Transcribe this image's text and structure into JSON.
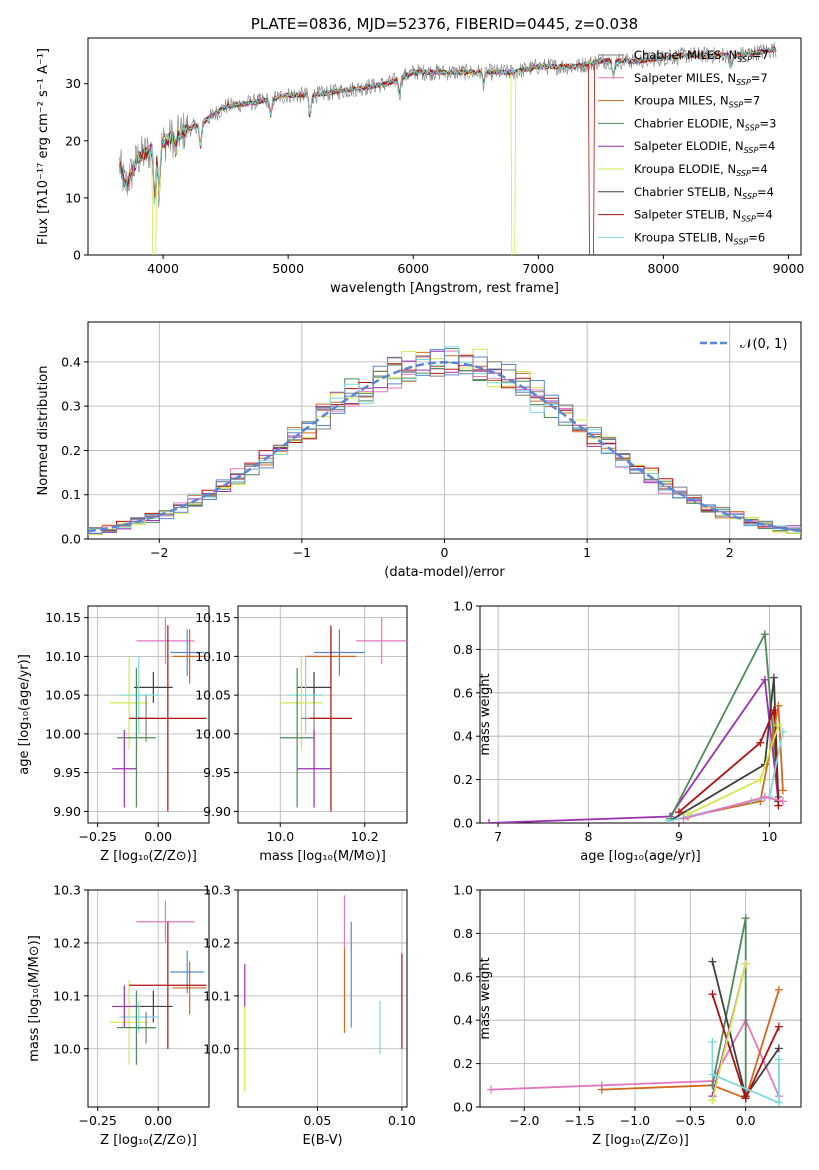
{
  "colors": {
    "chabrier_miles": "#7f7f7f",
    "salpeter_miles": "#e377c2",
    "kroupa_miles": "#d2691e",
    "chabrier_elodie": "#4e8a5a",
    "salpeter_elodie": "#9b30b0",
    "kroupa_elodie": "#d4e84a",
    "chabrier_stelib": "#404040",
    "salpeter_stelib": "#b01010",
    "kroupa_stelib": "#7fd8dc",
    "blue": "#5b86d4",
    "orange": "#ff7f0e"
  },
  "chart_data": [
    {
      "type": "line",
      "title": "PLATE=0836, MJD=52376, FIBERID=0445, z=0.038",
      "xlabel": "wavelength [Angstrom, rest frame]",
      "ylabel": "Flux [fλ10⁻¹⁷ erg cm⁻² s⁻¹ A⁻¹]",
      "xlim": [
        3400,
        9100
      ],
      "ylim": [
        0,
        38
      ],
      "xticks": [
        "4000",
        "5000",
        "6000",
        "7000",
        "8000",
        "9000"
      ],
      "yticks": [
        "0",
        "10",
        "20",
        "30"
      ],
      "legend_position": "top-right",
      "legend": [
        "Chabrier MILES, N_SSP=7",
        "Salpeter MILES, N_SSP=7",
        "Kroupa MILES, N_SSP=7",
        "Chabrier ELODIE, N_SSP=3",
        "Salpeter ELODIE, N_SSP=4",
        "Kroupa ELODIE, N_SSP=4",
        "Chabrier STELIB, N_SSP=4",
        "Salpeter STELIB, N_SSP=4",
        "Kroupa STELIB, N_SSP=6"
      ],
      "continuum": {
        "x": [
          3650,
          3700,
          3800,
          3950,
          4100,
          4300,
          4500,
          4800,
          5000,
          5200,
          5500,
          5800,
          6000,
          6300,
          6500,
          6800,
          7000,
          7300,
          7500,
          7800,
          8200,
          8600,
          8900
        ],
        "y": [
          16,
          12,
          17,
          19,
          21,
          23,
          26,
          27,
          28,
          28,
          29,
          30,
          32,
          32,
          32,
          32,
          33,
          33,
          34,
          34,
          35,
          35,
          36
        ]
      }
    },
    {
      "type": "line",
      "xlabel": "(data-model)/error",
      "ylabel": "Normed distribution",
      "xlim": [
        -2.5,
        2.5
      ],
      "ylim": [
        0,
        0.49
      ],
      "xticks": [
        "−2",
        "−1",
        "0",
        "1",
        "2"
      ],
      "yticks": [
        "0.0",
        "0.1",
        "0.2",
        "0.3",
        "0.4"
      ],
      "legend": [
        "𝒩(0, 1)"
      ],
      "legend_position": "top-right",
      "gaussian": {
        "mean": 0,
        "sigma": 1
      }
    },
    {
      "type": "scatter",
      "xlabel": "Z [log₁₀(Z/Z⊙)]",
      "ylabel": "age  [log₁₀(age/yr)]",
      "xlim": [
        -0.29,
        0.21
      ],
      "ylim": [
        9.885,
        10.165
      ],
      "xticks": [
        "−0.25",
        "0.00"
      ],
      "yticks": [
        "9.90",
        "9.95",
        "10.00",
        "10.05",
        "10.10",
        "10.15"
      ],
      "points": [
        {
          "x": 0.03,
          "y": 10.12,
          "xe": 0.12,
          "ye": 0.03,
          "c": "salpeter_miles"
        },
        {
          "x": 0.12,
          "y": 10.105,
          "xe": 0.07,
          "ye": 0.03,
          "c": "blue"
        },
        {
          "x": 0.13,
          "y": 10.1,
          "xe": 0.07,
          "ye": 0.035,
          "c": "kroupa_miles"
        },
        {
          "x": -0.02,
          "y": 10.06,
          "xe": 0.08,
          "ye": 0.02,
          "c": "chabrier_stelib"
        },
        {
          "x": -0.08,
          "y": 10.05,
          "xe": 0.08,
          "ye": 0.05,
          "c": "kroupa_stelib"
        },
        {
          "x": -0.12,
          "y": 10.04,
          "xe": 0.08,
          "ye": 0.06,
          "c": "kroupa_elodie"
        },
        {
          "x": -0.05,
          "y": 10.02,
          "xe": 0.04,
          "ye": 0.03,
          "c": "chabrier_miles"
        },
        {
          "x": 0.04,
          "y": 10.02,
          "xe": 0.16,
          "ye": 0.12,
          "c": "salpeter_stelib"
        },
        {
          "x": -0.09,
          "y": 9.995,
          "xe": 0.08,
          "ye": 0.09,
          "c": "chabrier_elodie"
        },
        {
          "x": -0.14,
          "y": 9.955,
          "xe": 0.05,
          "ye": 0.05,
          "c": "salpeter_elodie"
        }
      ]
    },
    {
      "type": "scatter",
      "xlabel": "mass [log₁₀(M/M⊙)]",
      "xlim": [
        9.9,
        10.3
      ],
      "ylim": [
        9.885,
        10.165
      ],
      "xticks": [
        "10.0",
        "10.2"
      ],
      "yticks": [
        "9.90",
        "9.95",
        "10.00",
        "10.05",
        "10.10",
        "10.15"
      ],
      "points": [
        {
          "x": 10.24,
          "y": 10.12,
          "xe": 0.06,
          "ye": 0.03,
          "c": "salpeter_miles"
        },
        {
          "x": 10.14,
          "y": 10.105,
          "xe": 0.06,
          "ye": 0.03,
          "c": "blue"
        },
        {
          "x": 10.12,
          "y": 10.1,
          "xe": 0.06,
          "ye": 0.035,
          "c": "kroupa_miles"
        },
        {
          "x": 10.08,
          "y": 10.06,
          "xe": 0.04,
          "ye": 0.02,
          "c": "chabrier_stelib"
        },
        {
          "x": 10.06,
          "y": 10.05,
          "xe": 0.04,
          "ye": 0.05,
          "c": "kroupa_stelib"
        },
        {
          "x": 10.05,
          "y": 10.04,
          "xe": 0.05,
          "ye": 0.06,
          "c": "kroupa_elodie"
        },
        {
          "x": 10.08,
          "y": 10.02,
          "xe": 0.03,
          "ye": 0.03,
          "c": "chabrier_miles"
        },
        {
          "x": 10.12,
          "y": 10.02,
          "xe": 0.05,
          "ye": 0.12,
          "c": "salpeter_stelib"
        },
        {
          "x": 10.04,
          "y": 9.995,
          "xe": 0.04,
          "ye": 0.09,
          "c": "chabrier_elodie"
        },
        {
          "x": 10.08,
          "y": 9.955,
          "xe": 0.04,
          "ye": 0.05,
          "c": "salpeter_elodie"
        }
      ]
    },
    {
      "type": "line",
      "xlabel": "age  [log₁₀(age/yr)]",
      "ylabel": "mass weight",
      "xlim": [
        6.8,
        10.35
      ],
      "ylim": [
        0,
        1.0
      ],
      "xticks": [
        "7",
        "8",
        "9",
        "10"
      ],
      "yticks": [
        "0.0",
        "0.2",
        "0.4",
        "0.6",
        "0.8",
        "1.0"
      ],
      "series": [
        {
          "c": "salpeter_elodie",
          "x": [
            6.9,
            8.9,
            9.95,
            10.1
          ],
          "y": [
            0.0,
            0.03,
            0.66,
            0.1
          ]
        },
        {
          "c": "chabrier_elodie",
          "x": [
            8.9,
            9.95,
            10.1
          ],
          "y": [
            0.02,
            0.87,
            0.12
          ]
        },
        {
          "c": "chabrier_stelib",
          "x": [
            8.9,
            9.95,
            10.05,
            10.1
          ],
          "y": [
            0.01,
            0.27,
            0.67,
            0.1
          ]
        },
        {
          "c": "salpeter_stelib",
          "x": [
            9.0,
            9.9,
            10.05,
            10.1
          ],
          "y": [
            0.05,
            0.37,
            0.52,
            0.08
          ]
        },
        {
          "c": "kroupa_miles",
          "x": [
            9.1,
            9.9,
            10.1,
            10.15
          ],
          "y": [
            0.03,
            0.1,
            0.54,
            0.15
          ]
        },
        {
          "c": "kroupa_stelib",
          "x": [
            8.9,
            9.8,
            10.0,
            10.15
          ],
          "y": [
            0.01,
            0.1,
            0.12,
            0.42
          ]
        },
        {
          "c": "kroupa_elodie",
          "x": [
            9.1,
            9.9,
            10.1
          ],
          "y": [
            0.04,
            0.2,
            0.45
          ]
        },
        {
          "c": "salpeter_miles",
          "x": [
            9.05,
            9.95,
            10.15
          ],
          "y": [
            0.02,
            0.12,
            0.1
          ]
        }
      ]
    },
    {
      "type": "scatter",
      "xlabel": "Z [log₁₀(Z/Z⊙)]",
      "ylabel": "mass [log₁₀(M/M⊙)]",
      "xlim": [
        -0.29,
        0.21
      ],
      "ylim": [
        9.89,
        10.3
      ],
      "xticks": [
        "−0.25",
        "0.00"
      ],
      "yticks": [
        "10.0",
        "10.1",
        "10.2",
        "10.3"
      ],
      "points": [
        {
          "x": 0.03,
          "y": 10.24,
          "xe": 0.12,
          "ye": 0.04,
          "c": "salpeter_miles"
        },
        {
          "x": 0.12,
          "y": 10.145,
          "xe": 0.07,
          "ye": 0.04,
          "c": "blue"
        },
        {
          "x": 0.13,
          "y": 10.115,
          "xe": 0.07,
          "ye": 0.05,
          "c": "kroupa_miles"
        },
        {
          "x": -0.02,
          "y": 10.08,
          "xe": 0.08,
          "ye": 0.03,
          "c": "chabrier_stelib"
        },
        {
          "x": -0.08,
          "y": 10.06,
          "xe": 0.08,
          "ye": 0.03,
          "c": "kroupa_stelib"
        },
        {
          "x": -0.12,
          "y": 10.05,
          "xe": 0.08,
          "ye": 0.08,
          "c": "kroupa_elodie"
        },
        {
          "x": -0.05,
          "y": 10.04,
          "xe": 0.04,
          "ye": 0.03,
          "c": "chabrier_miles"
        },
        {
          "x": 0.04,
          "y": 10.12,
          "xe": 0.16,
          "ye": 0.12,
          "c": "salpeter_stelib"
        },
        {
          "x": -0.09,
          "y": 10.04,
          "xe": 0.08,
          "ye": 0.07,
          "c": "chabrier_elodie"
        },
        {
          "x": -0.14,
          "y": 10.08,
          "xe": 0.05,
          "ye": 0.04,
          "c": "salpeter_elodie"
        }
      ]
    },
    {
      "type": "scatter",
      "xlabel": "E(B-V)",
      "xlim": [
        0.003,
        0.103
      ],
      "ylim": [
        9.89,
        10.3
      ],
      "xticks": [
        "0.05",
        "0.10"
      ],
      "yticks": [
        "10.0",
        "10.1",
        "10.2",
        "10.3"
      ],
      "points": [
        {
          "x": 0.007,
          "y": 10.12,
          "ye": 0.04,
          "c": "salpeter_elodie"
        },
        {
          "x": 0.007,
          "y": 10.0,
          "ye": 0.08,
          "c": "kroupa_elodie"
        },
        {
          "x": 0.066,
          "y": 10.24,
          "ye": 0.05,
          "c": "salpeter_miles"
        },
        {
          "x": 0.066,
          "y": 10.11,
          "ye": 0.08,
          "c": "kroupa_miles"
        },
        {
          "x": 0.07,
          "y": 10.14,
          "ye": 0.1,
          "c": "blue"
        },
        {
          "x": 0.087,
          "y": 10.04,
          "ye": 0.05,
          "c": "kroupa_stelib"
        },
        {
          "x": 0.1,
          "y": 10.09,
          "ye": 0.09,
          "c": "salpeter_stelib"
        }
      ]
    },
    {
      "type": "line",
      "xlabel": "Z [log₁₀(Z/Z⊙)]",
      "ylabel": "mass weight",
      "xlim": [
        -2.4,
        0.5
      ],
      "ylim": [
        0,
        1.0
      ],
      "xticks": [
        "−2.0",
        "−1.5",
        "−1.0",
        "−0.5",
        "0.0"
      ],
      "yticks": [
        "0.0",
        "0.2",
        "0.4",
        "0.6",
        "0.8",
        "1.0"
      ],
      "series": [
        {
          "c": "salpeter_miles",
          "x": [
            -2.3,
            -1.3,
            -0.3,
            0.0,
            0.3
          ],
          "y": [
            0.08,
            0.1,
            0.12,
            0.4,
            0.05
          ]
        },
        {
          "c": "kroupa_miles",
          "x": [
            -1.3,
            -0.3,
            0.0,
            0.3
          ],
          "y": [
            0.08,
            0.1,
            0.04,
            0.54
          ]
        },
        {
          "c": "chabrier_elodie",
          "x": [
            -0.3,
            0.0,
            0.0
          ],
          "y": [
            0.1,
            0.87,
            0.05
          ]
        },
        {
          "c": "chabrier_stelib",
          "x": [
            -0.3,
            0.0,
            0.3
          ],
          "y": [
            0.67,
            0.05,
            0.27
          ]
        },
        {
          "c": "salpeter_stelib",
          "x": [
            -0.3,
            0.0,
            0.3
          ],
          "y": [
            0.52,
            0.04,
            0.37
          ]
        },
        {
          "c": "salpeter_elodie",
          "x": [
            -0.3,
            0.0
          ],
          "y": [
            0.05,
            0.66
          ]
        },
        {
          "c": "kroupa_elodie",
          "x": [
            -0.3,
            0.0
          ],
          "y": [
            0.03,
            0.66
          ]
        },
        {
          "c": "kroupa_stelib",
          "x": [
            -0.3,
            -0.3,
            0.3,
            0.3
          ],
          "y": [
            0.3,
            0.15,
            0.02,
            0.22
          ]
        }
      ]
    }
  ]
}
